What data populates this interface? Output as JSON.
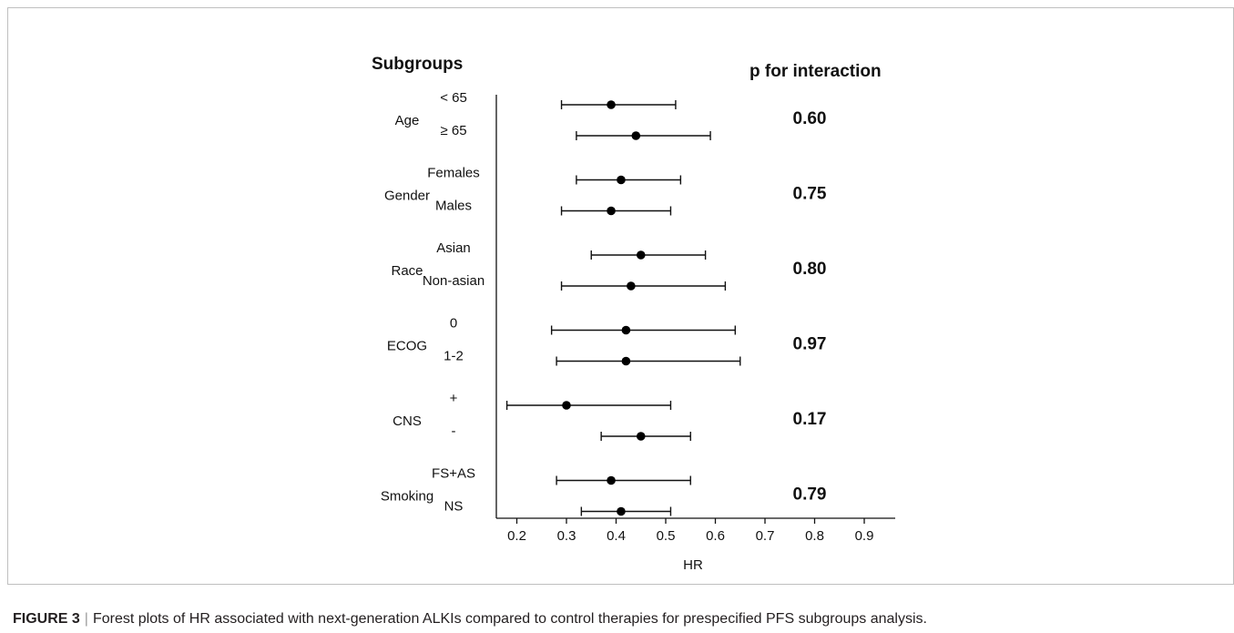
{
  "figure": {
    "caption_label": "FIGURE 3",
    "caption_separator": "|",
    "caption_text": "Forest plots of HR associated with next-generation ALKIs compared to control therapies for prespecified PFS subgroups analysis."
  },
  "chart_data": {
    "type": "scatter",
    "subtype": "forest-plot",
    "title_left": "Subgroups",
    "title_right": "p for interaction",
    "xlabel": "HR",
    "xlim": [
      0.15,
      0.95
    ],
    "xticks": [
      "0.2",
      "0.3",
      "0.4",
      "0.5",
      "0.6",
      "0.7",
      "0.8",
      "0.9"
    ],
    "grid": false,
    "groups": [
      {
        "name": "Age",
        "p_interaction": "0.60",
        "rows": [
          {
            "label": "< 65",
            "hr": 0.39,
            "ci_low": 0.29,
            "ci_high": 0.52
          },
          {
            "label": "≥ 65",
            "hr": 0.44,
            "ci_low": 0.32,
            "ci_high": 0.59
          }
        ]
      },
      {
        "name": "Gender",
        "p_interaction": "0.75",
        "rows": [
          {
            "label": "Females",
            "hr": 0.41,
            "ci_low": 0.32,
            "ci_high": 0.53
          },
          {
            "label": "Males",
            "hr": 0.39,
            "ci_low": 0.29,
            "ci_high": 0.51
          }
        ]
      },
      {
        "name": "Race",
        "p_interaction": "0.80",
        "rows": [
          {
            "label": "Asian",
            "hr": 0.45,
            "ci_low": 0.35,
            "ci_high": 0.58
          },
          {
            "label": "Non-asian",
            "hr": 0.43,
            "ci_low": 0.29,
            "ci_high": 0.62
          }
        ]
      },
      {
        "name": "ECOG",
        "p_interaction": "0.97",
        "rows": [
          {
            "label": "0",
            "hr": 0.42,
            "ci_low": 0.27,
            "ci_high": 0.64
          },
          {
            "label": "1-2",
            "hr": 0.42,
            "ci_low": 0.28,
            "ci_high": 0.65
          }
        ]
      },
      {
        "name": "CNS",
        "p_interaction": "0.17",
        "rows": [
          {
            "label": "+",
            "hr": 0.3,
            "ci_low": 0.18,
            "ci_high": 0.51
          },
          {
            "label": "-",
            "hr": 0.45,
            "ci_low": 0.37,
            "ci_high": 0.55
          }
        ]
      },
      {
        "name": "Smoking",
        "p_interaction": "0.79",
        "rows": [
          {
            "label": "FS+AS",
            "hr": 0.39,
            "ci_low": 0.28,
            "ci_high": 0.55
          },
          {
            "label": "NS",
            "hr": 0.41,
            "ci_low": 0.33,
            "ci_high": 0.51
          }
        ]
      }
    ]
  }
}
